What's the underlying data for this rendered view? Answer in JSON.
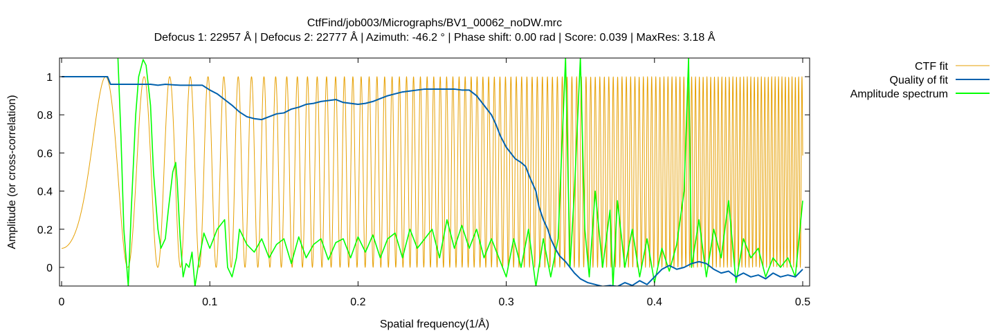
{
  "chart_data": {
    "type": "line",
    "title": "CtfFind/job003/Micrographs/BV1_00062_noDW.mrc",
    "subtitle": "Defocus 1: 22957 Å | Defocus 2: 22777 Å | Azimuth: -46.2 ° | Phase shift: 0.00 rad | Score: 0.039 | MaxRes: 3.18 Å",
    "xlabel": "Spatial frequency(1/Å)",
    "ylabel": "Amplitude (or cross-correlation)",
    "xlim": [
      0,
      0.5
    ],
    "ylim": [
      -0.1,
      1.1
    ],
    "x_ticks": [
      0,
      0.1,
      0.2,
      0.3,
      0.4,
      0.5
    ],
    "x_tick_labels": [
      "0",
      "0.1",
      "0.2",
      "0.3",
      "0.4",
      "0.5"
    ],
    "y_ticks": [
      0,
      0.2,
      0.4,
      0.6,
      0.8,
      1
    ],
    "y_tick_labels": [
      "0",
      "0.2",
      "0.4",
      "0.6",
      "0.8",
      "1"
    ],
    "grid": false,
    "legend_position": "outside-right-top",
    "series": [
      {
        "name": "CTF fit",
        "color": "#e69f00",
        "model": "ctf",
        "defocus_angstrom": 22867,
        "wavelength_angstrom": 0.0197,
        "y_at_zero": 0.1
      },
      {
        "name": "Quality of fit",
        "color": "#0060ad",
        "x": [
          0,
          0.005,
          0.01,
          0.02,
          0.031,
          0.033,
          0.04,
          0.05,
          0.06,
          0.065,
          0.07,
          0.08,
          0.09,
          0.095,
          0.1,
          0.105,
          0.11,
          0.115,
          0.12,
          0.125,
          0.13,
          0.135,
          0.14,
          0.145,
          0.15,
          0.155,
          0.16,
          0.165,
          0.17,
          0.175,
          0.18,
          0.185,
          0.19,
          0.195,
          0.2,
          0.205,
          0.21,
          0.215,
          0.22,
          0.225,
          0.23,
          0.235,
          0.24,
          0.245,
          0.25,
          0.255,
          0.26,
          0.265,
          0.27,
          0.275,
          0.28,
          0.285,
          0.29,
          0.293,
          0.296,
          0.3,
          0.303,
          0.306,
          0.31,
          0.313,
          0.316,
          0.32,
          0.322,
          0.325,
          0.328,
          0.33,
          0.333,
          0.336,
          0.34,
          0.343,
          0.346,
          0.35,
          0.355,
          0.36,
          0.365,
          0.37,
          0.375,
          0.38,
          0.385,
          0.39,
          0.395,
          0.4,
          0.405,
          0.41,
          0.415,
          0.42,
          0.425,
          0.43,
          0.435,
          0.44,
          0.445,
          0.45,
          0.455,
          0.46,
          0.465,
          0.47,
          0.475,
          0.48,
          0.485,
          0.49,
          0.495,
          0.5
        ],
        "y": [
          1.0,
          1.0,
          1.0,
          1.0,
          1.0,
          0.96,
          0.96,
          0.96,
          0.96,
          0.955,
          0.96,
          0.955,
          0.955,
          0.955,
          0.93,
          0.91,
          0.88,
          0.85,
          0.815,
          0.79,
          0.78,
          0.775,
          0.79,
          0.805,
          0.81,
          0.83,
          0.84,
          0.855,
          0.86,
          0.87,
          0.875,
          0.88,
          0.865,
          0.86,
          0.855,
          0.86,
          0.87,
          0.885,
          0.9,
          0.91,
          0.92,
          0.925,
          0.93,
          0.935,
          0.935,
          0.935,
          0.935,
          0.935,
          0.93,
          0.93,
          0.9,
          0.85,
          0.8,
          0.75,
          0.69,
          0.63,
          0.6,
          0.57,
          0.55,
          0.53,
          0.47,
          0.4,
          0.32,
          0.25,
          0.2,
          0.15,
          0.1,
          0.06,
          0.03,
          0.0,
          -0.03,
          -0.06,
          -0.08,
          -0.09,
          -0.1,
          -0.095,
          -0.1,
          -0.08,
          -0.095,
          -0.07,
          -0.09,
          -0.05,
          -0.01,
          0.01,
          -0.01,
          0.0,
          0.02,
          0.03,
          0.02,
          -0.01,
          -0.03,
          -0.02,
          -0.05,
          -0.03,
          -0.05,
          -0.04,
          -0.06,
          -0.03,
          -0.05,
          -0.04,
          -0.05,
          -0.01
        ]
      },
      {
        "name": "Amplitude spectrum",
        "color": "#00ff00",
        "x": [
          0.038,
          0.04,
          0.042,
          0.045,
          0.047,
          0.05,
          0.052,
          0.055,
          0.057,
          0.06,
          0.062,
          0.065,
          0.067,
          0.07,
          0.072,
          0.075,
          0.077,
          0.078,
          0.08,
          0.082,
          0.084,
          0.086,
          0.088,
          0.09,
          0.093,
          0.096,
          0.1,
          0.105,
          0.11,
          0.112,
          0.115,
          0.118,
          0.12,
          0.125,
          0.13,
          0.135,
          0.14,
          0.145,
          0.15,
          0.155,
          0.16,
          0.165,
          0.17,
          0.175,
          0.18,
          0.185,
          0.19,
          0.195,
          0.2,
          0.205,
          0.21,
          0.215,
          0.22,
          0.225,
          0.23,
          0.235,
          0.24,
          0.245,
          0.25,
          0.255,
          0.26,
          0.265,
          0.27,
          0.275,
          0.28,
          0.285,
          0.29,
          0.295,
          0.3,
          0.305,
          0.31,
          0.315,
          0.32,
          0.325,
          0.33,
          0.335,
          0.34,
          0.343,
          0.346,
          0.35,
          0.353,
          0.356,
          0.36,
          0.365,
          0.37,
          0.372,
          0.375,
          0.38,
          0.385,
          0.39,
          0.395,
          0.4,
          0.405,
          0.41,
          0.415,
          0.42,
          0.423,
          0.425,
          0.43,
          0.435,
          0.44,
          0.445,
          0.45,
          0.455,
          0.46,
          0.465,
          0.47,
          0.475,
          0.48,
          0.485,
          0.49,
          0.495,
          0.5
        ],
        "y": [
          1.1,
          0.7,
          0.2,
          -0.1,
          0.3,
          0.8,
          1.0,
          1.09,
          1.06,
          0.85,
          0.5,
          0.2,
          0.1,
          0.15,
          0.3,
          0.5,
          0.55,
          0.45,
          0.15,
          -0.05,
          0.02,
          0.0,
          0.08,
          -0.1,
          0.05,
          0.18,
          0.1,
          0.2,
          0.25,
          0.0,
          -0.05,
          0.05,
          0.2,
          0.12,
          0.08,
          0.15,
          0.05,
          0.12,
          0.15,
          0.02,
          0.16,
          0.05,
          0.12,
          0.15,
          0.04,
          0.13,
          0.15,
          0.05,
          0.16,
          0.08,
          0.17,
          0.05,
          0.15,
          0.18,
          0.05,
          0.2,
          0.1,
          0.15,
          0.2,
          0.05,
          0.25,
          0.1,
          0.22,
          0.1,
          0.2,
          0.05,
          0.15,
          0.05,
          -0.05,
          0.15,
          0.0,
          0.2,
          -0.1,
          0.15,
          -0.05,
          0.15,
          1.1,
          0.0,
          0.4,
          1.1,
          0.2,
          -0.05,
          0.4,
          0.0,
          0.3,
          -0.1,
          0.35,
          0.0,
          0.2,
          -0.05,
          0.15,
          -0.08,
          0.1,
          -0.02,
          0.12,
          0.4,
          1.1,
          0.0,
          0.25,
          -0.05,
          0.2,
          0.05,
          0.35,
          -0.08,
          0.15,
          0.05,
          0.1,
          -0.05,
          0.05,
          0.0,
          0.05,
          -0.05,
          0.35
        ]
      }
    ]
  }
}
